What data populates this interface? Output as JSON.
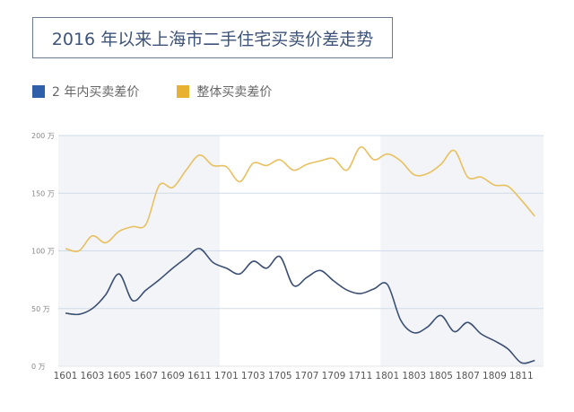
{
  "chart_data": {
    "type": "line",
    "title": "2016 年以来上海市二手住宅买卖价差走势",
    "x": [
      "1601",
      "1602",
      "1603",
      "1604",
      "1605",
      "1606",
      "1607",
      "1608",
      "1609",
      "1610",
      "1611",
      "1612",
      "1701",
      "1702",
      "1703",
      "1704",
      "1705",
      "1706",
      "1707",
      "1708",
      "1709",
      "1710",
      "1711",
      "1712",
      "1801",
      "1802",
      "1803",
      "1804",
      "1805",
      "1806",
      "1807",
      "1808",
      "1809",
      "1810",
      "1811",
      "1812"
    ],
    "x_tick_labels": [
      "1601",
      "1603",
      "1605",
      "1607",
      "1609",
      "1611",
      "1701",
      "1703",
      "1705",
      "1707",
      "1709",
      "1711",
      "1801",
      "1803",
      "1805",
      "1807",
      "1809",
      "1811"
    ],
    "y_tick_labels": [
      "0 万",
      "50 万",
      "100 万",
      "150 万",
      "200 万"
    ],
    "y_ticks": [
      0,
      50,
      100,
      150,
      200
    ],
    "ylim": [
      0,
      200
    ],
    "ylabel": "",
    "xlabel": "",
    "grid": true,
    "legend_position": "top-left",
    "series": [
      {
        "name": "2 年内买卖差价",
        "color": "#2f5597",
        "values": [
          46,
          45,
          50,
          62,
          80,
          57,
          66,
          75,
          85,
          94,
          102,
          90,
          85,
          80,
          91,
          85,
          95,
          70,
          77,
          83,
          74,
          66,
          63,
          67,
          71,
          40,
          29,
          34,
          44,
          30,
          38,
          28,
          22,
          15,
          3,
          5
        ]
      },
      {
        "name": "整体买卖差价",
        "color": "#e8b230",
        "values": [
          102,
          100,
          113,
          107,
          117,
          121,
          123,
          157,
          155,
          170,
          183,
          174,
          173,
          160,
          176,
          174,
          179,
          170,
          175,
          178,
          180,
          170,
          190,
          179,
          184,
          178,
          166,
          167,
          175,
          187,
          164,
          164,
          157,
          156,
          144,
          130
        ]
      }
    ]
  }
}
